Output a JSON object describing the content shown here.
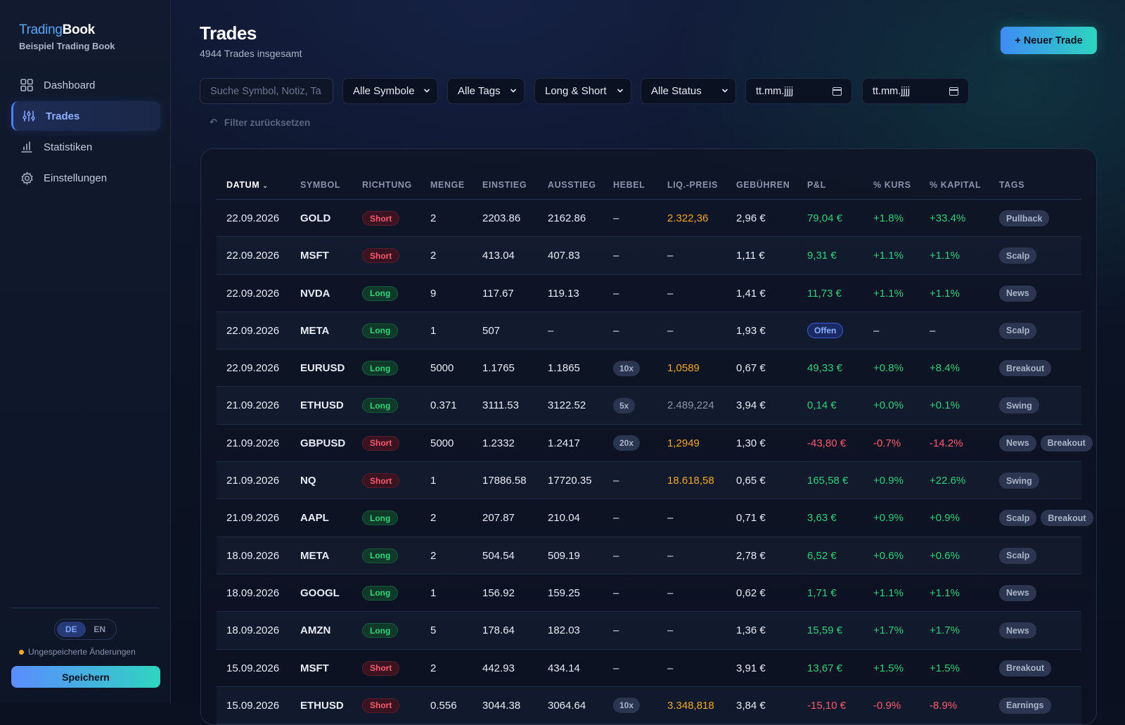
{
  "brand": {
    "name_part1": "Trading",
    "name_part2": "Book",
    "subtitle": "Beispiel Trading Book"
  },
  "nav": [
    {
      "label": "Dashboard",
      "icon": "grid-icon",
      "active": false
    },
    {
      "label": "Trades",
      "icon": "sliders-icon",
      "active": true
    },
    {
      "label": "Statistiken",
      "icon": "bar-chart-icon",
      "active": false
    },
    {
      "label": "Einstellungen",
      "icon": "gear-icon",
      "active": false
    }
  ],
  "language": {
    "options": [
      "DE",
      "EN"
    ],
    "selected": "DE"
  },
  "unsaved_label": "Ungespeicherte Änderungen",
  "save_label": "Speichern",
  "page": {
    "title": "Trades",
    "subtitle": "4944 Trades insgesamt",
    "new_trade_label": "+ Neuer Trade"
  },
  "filters": {
    "search_placeholder": "Suche Symbol, Notiz, Ta",
    "symbol": "Alle Symbole",
    "tags": "Alle Tags",
    "direction": "Long & Short",
    "status": "Alle Status",
    "date_from": "tt.mm.jjjj",
    "date_to": "tt.mm.jjjj",
    "reset_label": "Filter zurücksetzen"
  },
  "colors": {
    "accent": "#4f7dff",
    "teal": "#2dd4bf",
    "positive": "#2fd07a",
    "negative": "#ff5a6e",
    "warning": "#f5a623"
  },
  "table": {
    "sort_column": "DATUM",
    "columns": [
      "DATUM",
      "SYMBOL",
      "RICHTUNG",
      "MENGE",
      "EINSTIEG",
      "AUSSTIEG",
      "HEBEL",
      "LIQ.-PREIS",
      "GEBÜHREN",
      "P&L",
      "% KURS",
      "% KAPITAL",
      "TAGS"
    ],
    "rows": [
      {
        "date": "22.09.2026",
        "symbol": "GOLD",
        "dir": "Short",
        "qty": "2",
        "entry": "2203.86",
        "exit": "2162.86",
        "lev": "–",
        "liq": "2.322,36",
        "liq_style": "warn",
        "fees": "2,96 €",
        "pnl": "79,04 €",
        "pnl_sign": "pos",
        "pct_price": "+1.8%",
        "pct_cap": "+33.4%",
        "tags": [
          "Pullback"
        ]
      },
      {
        "date": "22.09.2026",
        "symbol": "MSFT",
        "dir": "Short",
        "qty": "2",
        "entry": "413.04",
        "exit": "407.83",
        "lev": "–",
        "liq": "–",
        "liq_style": "plain",
        "fees": "1,11 €",
        "pnl": "9,31 €",
        "pnl_sign": "pos",
        "pct_price": "+1.1%",
        "pct_cap": "+1.1%",
        "tags": [
          "Scalp"
        ]
      },
      {
        "date": "22.09.2026",
        "symbol": "NVDA",
        "dir": "Long",
        "qty": "9",
        "entry": "117.67",
        "exit": "119.13",
        "lev": "–",
        "liq": "–",
        "liq_style": "plain",
        "fees": "1,41 €",
        "pnl": "11,73 €",
        "pnl_sign": "pos",
        "pct_price": "+1.1%",
        "pct_cap": "+1.1%",
        "tags": [
          "News"
        ]
      },
      {
        "date": "22.09.2026",
        "symbol": "META",
        "dir": "Long",
        "qty": "1",
        "entry": "507",
        "exit": "–",
        "lev": "–",
        "liq": "–",
        "liq_style": "plain",
        "fees": "1,93 €",
        "pnl": "Offen",
        "pnl_sign": "open",
        "pct_price": "–",
        "pct_cap": "–",
        "tags": [
          "Scalp"
        ]
      },
      {
        "date": "22.09.2026",
        "symbol": "EURUSD",
        "dir": "Long",
        "qty": "5000",
        "entry": "1.1765",
        "exit": "1.1865",
        "lev": "10x",
        "liq": "1,0589",
        "liq_style": "warn",
        "fees": "0,67 €",
        "pnl": "49,33 €",
        "pnl_sign": "pos",
        "pct_price": "+0.8%",
        "pct_cap": "+8.4%",
        "tags": [
          "Breakout"
        ]
      },
      {
        "date": "21.09.2026",
        "symbol": "ETHUSD",
        "dir": "Long",
        "qty": "0.371",
        "entry": "3111.53",
        "exit": "3122.52",
        "lev": "5x",
        "liq": "2.489,224",
        "liq_style": "neutral",
        "fees": "3,94 €",
        "pnl": "0,14 €",
        "pnl_sign": "pos",
        "pct_price": "+0.0%",
        "pct_cap": "+0.1%",
        "tags": [
          "Swing"
        ]
      },
      {
        "date": "21.09.2026",
        "symbol": "GBPUSD",
        "dir": "Short",
        "qty": "5000",
        "entry": "1.2332",
        "exit": "1.2417",
        "lev": "20x",
        "liq": "1,2949",
        "liq_style": "warn",
        "fees": "1,30 €",
        "pnl": "-43,80 €",
        "pnl_sign": "neg",
        "pct_price": "-0.7%",
        "pct_cap": "-14.2%",
        "tags": [
          "News",
          "Breakout"
        ]
      },
      {
        "date": "21.09.2026",
        "symbol": "NQ",
        "dir": "Short",
        "qty": "1",
        "entry": "17886.58",
        "exit": "17720.35",
        "lev": "–",
        "liq": "18.618,58",
        "liq_style": "warn",
        "fees": "0,65 €",
        "pnl": "165,58 €",
        "pnl_sign": "pos",
        "pct_price": "+0.9%",
        "pct_cap": "+22.6%",
        "tags": [
          "Swing"
        ]
      },
      {
        "date": "21.09.2026",
        "symbol": "AAPL",
        "dir": "Long",
        "qty": "2",
        "entry": "207.87",
        "exit": "210.04",
        "lev": "–",
        "liq": "–",
        "liq_style": "plain",
        "fees": "0,71 €",
        "pnl": "3,63 €",
        "pnl_sign": "pos",
        "pct_price": "+0.9%",
        "pct_cap": "+0.9%",
        "tags": [
          "Scalp",
          "Breakout"
        ]
      },
      {
        "date": "18.09.2026",
        "symbol": "META",
        "dir": "Long",
        "qty": "2",
        "entry": "504.54",
        "exit": "509.19",
        "lev": "–",
        "liq": "–",
        "liq_style": "plain",
        "fees": "2,78 €",
        "pnl": "6,52 €",
        "pnl_sign": "pos",
        "pct_price": "+0.6%",
        "pct_cap": "+0.6%",
        "tags": [
          "Scalp"
        ]
      },
      {
        "date": "18.09.2026",
        "symbol": "GOOGL",
        "dir": "Long",
        "qty": "1",
        "entry": "156.92",
        "exit": "159.25",
        "lev": "–",
        "liq": "–",
        "liq_style": "plain",
        "fees": "0,62 €",
        "pnl": "1,71 €",
        "pnl_sign": "pos",
        "pct_price": "+1.1%",
        "pct_cap": "+1.1%",
        "tags": [
          "News"
        ]
      },
      {
        "date": "18.09.2026",
        "symbol": "AMZN",
        "dir": "Long",
        "qty": "5",
        "entry": "178.64",
        "exit": "182.03",
        "lev": "–",
        "liq": "–",
        "liq_style": "plain",
        "fees": "1,36 €",
        "pnl": "15,59 €",
        "pnl_sign": "pos",
        "pct_price": "+1.7%",
        "pct_cap": "+1.7%",
        "tags": [
          "News"
        ]
      },
      {
        "date": "15.09.2026",
        "symbol": "MSFT",
        "dir": "Short",
        "qty": "2",
        "entry": "442.93",
        "exit": "434.14",
        "lev": "–",
        "liq": "–",
        "liq_style": "plain",
        "fees": "3,91 €",
        "pnl": "13,67 €",
        "pnl_sign": "pos",
        "pct_price": "+1.5%",
        "pct_cap": "+1.5%",
        "tags": [
          "Breakout"
        ]
      },
      {
        "date": "15.09.2026",
        "symbol": "ETHUSD",
        "dir": "Short",
        "qty": "0.556",
        "entry": "3044.38",
        "exit": "3064.64",
        "lev": "10x",
        "liq": "3.348,818",
        "liq_style": "warn",
        "fees": "3,84 €",
        "pnl": "-15,10 €",
        "pnl_sign": "neg",
        "pct_price": "-0.9%",
        "pct_cap": "-8.9%",
        "tags": [
          "Earnings"
        ]
      }
    ]
  }
}
